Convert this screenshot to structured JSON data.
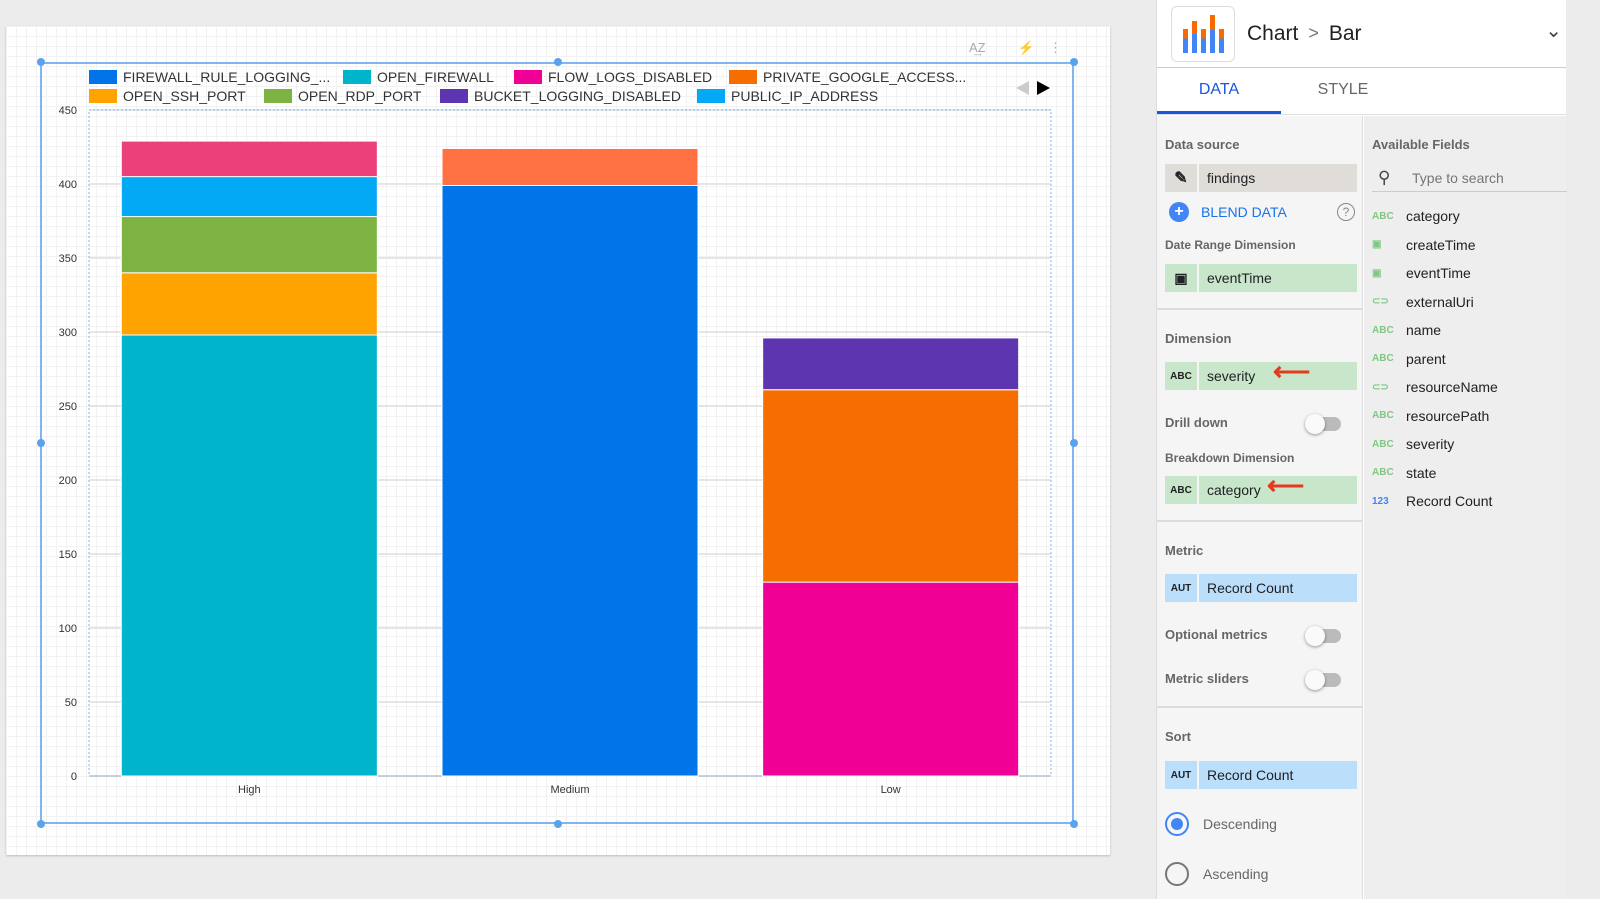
{
  "toolbar": {
    "sort_icon": "az-sort-icon",
    "bolt_icon": "lightning-icon",
    "more_icon": "more-vert-icon"
  },
  "panel": {
    "breadcrumb": [
      "Chart",
      "Bar"
    ],
    "tabs": [
      {
        "label": "DATA",
        "active": true
      },
      {
        "label": "STYLE",
        "active": false
      }
    ],
    "data_source_label": "Data source",
    "data_source": "findings",
    "blend_label": "BLEND DATA",
    "date_range_label": "Date Range Dimension",
    "date_range": "eventTime",
    "dimension_label": "Dimension",
    "dimension": "severity",
    "drill_down_label": "Drill down",
    "drill_down": false,
    "breakdown_label": "Breakdown Dimension",
    "breakdown": "category",
    "metric_label": "Metric",
    "metric_type": "AUT",
    "metric": "Record Count",
    "optional_metrics_label": "Optional metrics",
    "optional_metrics": false,
    "metric_sliders_label": "Metric sliders",
    "metric_sliders": false,
    "sort_label": "Sort",
    "sort_type": "AUT",
    "sort": "Record Count",
    "sort_options": [
      {
        "label": "Descending",
        "selected": true
      },
      {
        "label": "Ascending",
        "selected": false
      }
    ],
    "fields_label": "Available Fields",
    "search_placeholder": "Type to search",
    "fields": [
      {
        "type": "ABC",
        "name": "category"
      },
      {
        "type": "date",
        "name": "createTime"
      },
      {
        "type": "date",
        "name": "eventTime"
      },
      {
        "type": "link",
        "name": "externalUri"
      },
      {
        "type": "ABC",
        "name": "name"
      },
      {
        "type": "ABC",
        "name": "parent"
      },
      {
        "type": "link",
        "name": "resourceName"
      },
      {
        "type": "ABC",
        "name": "resourcePath"
      },
      {
        "type": "ABC",
        "name": "severity"
      },
      {
        "type": "ABC",
        "name": "state"
      },
      {
        "type": "123",
        "name": "Record Count"
      }
    ]
  },
  "chart_data": {
    "type": "bar",
    "stacked": true,
    "categories": [
      "High",
      "Medium",
      "Low"
    ],
    "ylim": [
      0,
      450
    ],
    "yticks": [
      0,
      50,
      100,
      150,
      200,
      250,
      300,
      350,
      400,
      450
    ],
    "grid": true,
    "legend_placement": "top",
    "series": [
      {
        "name": "FIREWALL_RULE_LOGGING_...",
        "color": "#0074e8",
        "values": [
          0,
          399,
          0
        ]
      },
      {
        "name": "OPEN_FIREWALL",
        "color": "#00b4cb",
        "values": [
          298,
          0,
          0
        ]
      },
      {
        "name": "FLOW_LOGS_DISABLED",
        "color": "#f10096",
        "values": [
          0,
          0,
          131
        ]
      },
      {
        "name": "PRIVATE_GOOGLE_ACCESS...",
        "color": "#f66d00",
        "values": [
          0,
          0,
          130
        ]
      },
      {
        "name": "OPEN_SSH_PORT",
        "color": "#ffa300",
        "values": [
          42,
          0,
          0
        ]
      },
      {
        "name": "OPEN_RDP_PORT",
        "color": "#7cb342",
        "values": [
          38,
          0,
          0
        ]
      },
      {
        "name": "BUCKET_LOGGING_DISABLED",
        "color": "#5e35b1",
        "values": [
          0,
          0,
          35
        ]
      },
      {
        "name": "PUBLIC_IP_ADDRESS",
        "color": "#03a9f4",
        "values": [
          27,
          0,
          0
        ]
      },
      {
        "name": "",
        "color": "#ec407a",
        "values": [
          24,
          0,
          0
        ]
      },
      {
        "name": "",
        "color": "#ff7043",
        "values": [
          0,
          25,
          0
        ]
      }
    ]
  }
}
